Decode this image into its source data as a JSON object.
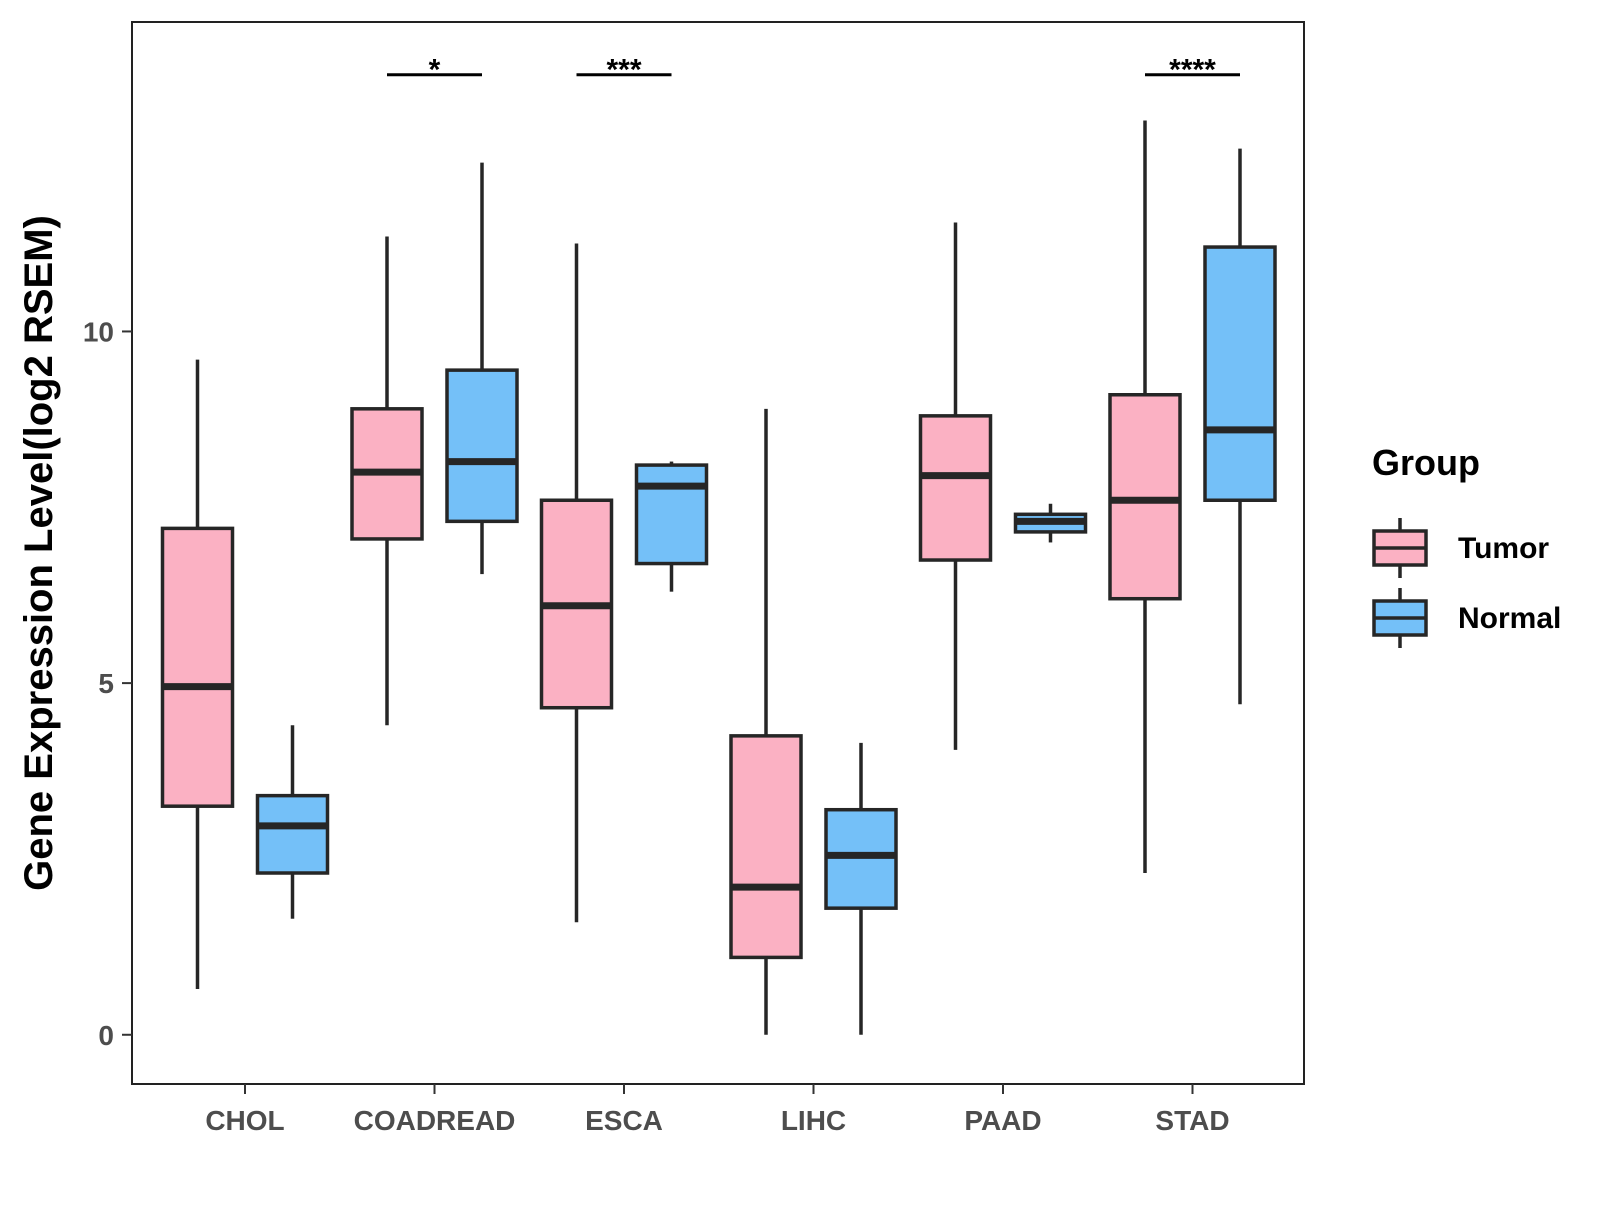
{
  "chart_data": {
    "type": "boxplot",
    "title": "",
    "xlabel": "",
    "ylabel": "Gene Expression Level(log2 RSEM)",
    "ylim": [
      -0.7,
      14.4
    ],
    "yticks": [
      0,
      5,
      10
    ],
    "ytick_labels": [
      "0",
      "5",
      "10"
    ],
    "grid": false,
    "categories": [
      "CHOL",
      "COADREAD",
      "ESCA",
      "LIHC",
      "PAAD",
      "STAD"
    ],
    "series": [
      {
        "name": "Tumor",
        "color": "#fbb1c3",
        "boxes": [
          {
            "category": "CHOL",
            "whisker_low": 0.65,
            "q1": 3.25,
            "median": 4.95,
            "q3": 7.2,
            "whisker_high": 9.6
          },
          {
            "category": "COADREAD",
            "whisker_low": 4.4,
            "q1": 7.05,
            "median": 8.0,
            "q3": 8.9,
            "whisker_high": 11.35
          },
          {
            "category": "ESCA",
            "whisker_low": 1.6,
            "q1": 4.65,
            "median": 6.1,
            "q3": 7.6,
            "whisker_high": 11.25
          },
          {
            "category": "LIHC",
            "whisker_low": 0.0,
            "q1": 1.1,
            "median": 2.1,
            "q3": 4.25,
            "whisker_high": 8.9
          },
          {
            "category": "PAAD",
            "whisker_low": 4.05,
            "q1": 6.75,
            "median": 7.95,
            "q3": 8.8,
            "whisker_high": 11.55
          },
          {
            "category": "STAD",
            "whisker_low": 2.3,
            "q1": 6.2,
            "median": 7.6,
            "q3": 9.1,
            "whisker_high": 13.0
          }
        ]
      },
      {
        "name": "Normal",
        "color": "#74c0f8",
        "boxes": [
          {
            "category": "CHOL",
            "whisker_low": 1.65,
            "q1": 2.3,
            "median": 2.97,
            "q3": 3.4,
            "whisker_high": 4.4
          },
          {
            "category": "COADREAD",
            "whisker_low": 6.55,
            "q1": 7.3,
            "median": 8.15,
            "q3": 9.45,
            "whisker_high": 12.4
          },
          {
            "category": "ESCA",
            "whisker_low": 6.3,
            "q1": 6.7,
            "median": 7.8,
            "q3": 8.1,
            "whisker_high": 8.15
          },
          {
            "category": "LIHC",
            "whisker_low": 0.0,
            "q1": 1.8,
            "median": 2.55,
            "q3": 3.2,
            "whisker_high": 4.15
          },
          {
            "category": "PAAD",
            "whisker_low": 7.0,
            "q1": 7.15,
            "median": 7.3,
            "q3": 7.4,
            "whisker_high": 7.55
          },
          {
            "category": "STAD",
            "whisker_low": 4.7,
            "q1": 7.6,
            "median": 8.6,
            "q3": 11.2,
            "whisker_high": 12.6
          }
        ]
      }
    ],
    "significance": [
      {
        "category": "COADREAD",
        "label": "*",
        "y": 13.65
      },
      {
        "category": "ESCA",
        "label": "***",
        "y": 13.65
      },
      {
        "category": "STAD",
        "label": "****",
        "y": 13.65
      }
    ],
    "legend": {
      "title": "Group",
      "position": "right",
      "entries": [
        "Tumor",
        "Normal"
      ]
    }
  }
}
